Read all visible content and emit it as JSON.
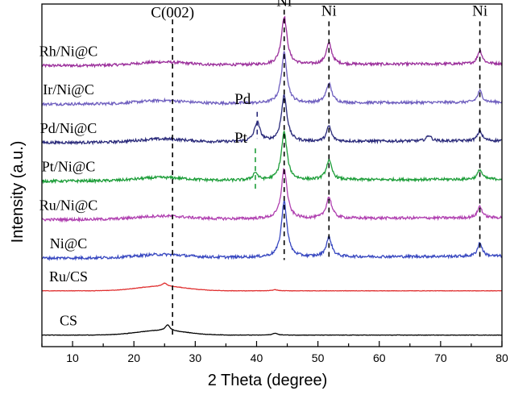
{
  "chart_data": {
    "type": "line",
    "xlabel": "2 Theta (degree)",
    "ylabel": "Intensity (a.u.)",
    "xlim": [
      5,
      80
    ],
    "xticks": [
      10,
      20,
      30,
      40,
      50,
      60,
      70,
      80
    ],
    "y_ticks_shown": false,
    "grid": false,
    "legend": "none (series labels printed next to each trace, stacked with vertical offsets)",
    "series": [
      {
        "name": "Rh/Ni@C",
        "color": "#9b2f9b",
        "baseline": 7.0,
        "peaks": [
          {
            "x": 44.5,
            "height": 1.25
          },
          {
            "x": 51.8,
            "height": 0.55
          },
          {
            "x": 76.4,
            "height": 0.35
          }
        ]
      },
      {
        "name": "Ir/Ni@C",
        "color": "#6f5fbf",
        "baseline": 6.0,
        "peaks": [
          {
            "x": 44.5,
            "height": 1.3
          },
          {
            "x": 51.8,
            "height": 0.5
          },
          {
            "x": 76.4,
            "height": 0.3
          }
        ]
      },
      {
        "name": "Pd/Ni@C",
        "color": "#2a2a7a",
        "baseline": 5.0,
        "peaks": [
          {
            "x": 40.1,
            "height": 0.5
          },
          {
            "x": 44.5,
            "height": 1.2
          },
          {
            "x": 51.8,
            "height": 0.4
          },
          {
            "x": 68.1,
            "height": 0.15
          },
          {
            "x": 76.4,
            "height": 0.25
          }
        ]
      },
      {
        "name": "Pt/Ni@C",
        "color": "#1e9e3a",
        "baseline": 4.0,
        "peaks": [
          {
            "x": 39.8,
            "height": 0.2
          },
          {
            "x": 44.5,
            "height": 1.25
          },
          {
            "x": 51.8,
            "height": 0.5
          },
          {
            "x": 76.4,
            "height": 0.25
          }
        ]
      },
      {
        "name": "Ru/Ni@C",
        "color": "#b040b0",
        "baseline": 3.0,
        "peaks": [
          {
            "x": 44.5,
            "height": 1.3
          },
          {
            "x": 51.8,
            "height": 0.55
          },
          {
            "x": 76.4,
            "height": 0.3
          }
        ]
      },
      {
        "name": "Ni@C",
        "color": "#3848c0",
        "baseline": 2.0,
        "peaks": [
          {
            "x": 44.5,
            "height": 1.45
          },
          {
            "x": 51.8,
            "height": 0.5
          },
          {
            "x": 76.4,
            "height": 0.35
          }
        ]
      },
      {
        "name": "Ru/CS",
        "color": "#e03030",
        "baseline": 1.15,
        "peaks": [
          {
            "x": 25.0,
            "height": 0.08
          },
          {
            "x": 43.0,
            "height": 0.03
          }
        ]
      },
      {
        "name": "CS",
        "color": "#000000",
        "baseline": 0.0,
        "peaks": [
          {
            "x": 25.5,
            "height": 0.15
          },
          {
            "x": 43.0,
            "height": 0.05
          }
        ]
      }
    ],
    "annotations": [
      {
        "text": "C(002)",
        "x": 26.3,
        "dashed_line": true,
        "line_color": "#000000"
      },
      {
        "text": "Ni",
        "x": 44.5,
        "dashed_line": true,
        "line_color": "#000000"
      },
      {
        "text": "Ni",
        "x": 51.8,
        "dashed_line": true,
        "line_color": "#000000"
      },
      {
        "text": "Ni",
        "x": 76.4,
        "dashed_line": true,
        "line_color": "#000000"
      },
      {
        "text": "Pd",
        "x": 40.1,
        "dashed_line": true,
        "line_color": "#2a2a7a"
      },
      {
        "text": "Pt",
        "x": 39.8,
        "dashed_line": true,
        "line_color": "#1e9e3a"
      }
    ]
  }
}
